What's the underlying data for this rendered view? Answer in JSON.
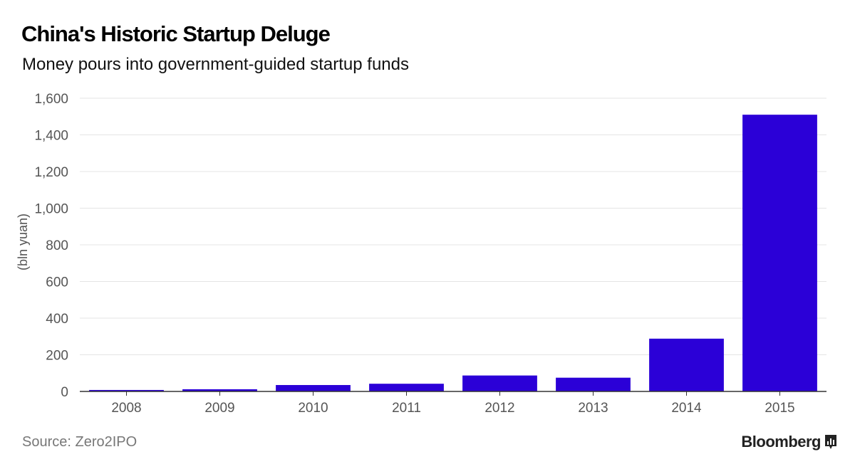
{
  "title": "China's Historic Startup Deluge",
  "subtitle": "Money pours into government-guided startup funds",
  "source": "Source: Zero2IPO",
  "brand": "Bloomberg",
  "colors": {
    "bar": "#2b00d7",
    "grid": "#e4e4e4",
    "axis": "#333333",
    "tick_text": "#555555"
  },
  "chart_data": {
    "type": "bar",
    "title": "China's Historic Startup Deluge",
    "subtitle": "Money pours into government-guided startup funds",
    "xlabel": "",
    "ylabel": "(bln yuan)",
    "categories": [
      "2008",
      "2009",
      "2010",
      "2011",
      "2012",
      "2013",
      "2014",
      "2015"
    ],
    "values": [
      8,
      12,
      35,
      42,
      87,
      75,
      288,
      1510
    ],
    "ylim": [
      0,
      1600
    ],
    "yticks": [
      0,
      200,
      400,
      600,
      800,
      1000,
      1200,
      1400,
      1600
    ],
    "ytick_labels": [
      "0",
      "200",
      "400",
      "600",
      "800",
      "1,000",
      "1,200",
      "1,400",
      "1,600"
    ],
    "grid": true,
    "legend": "none"
  }
}
